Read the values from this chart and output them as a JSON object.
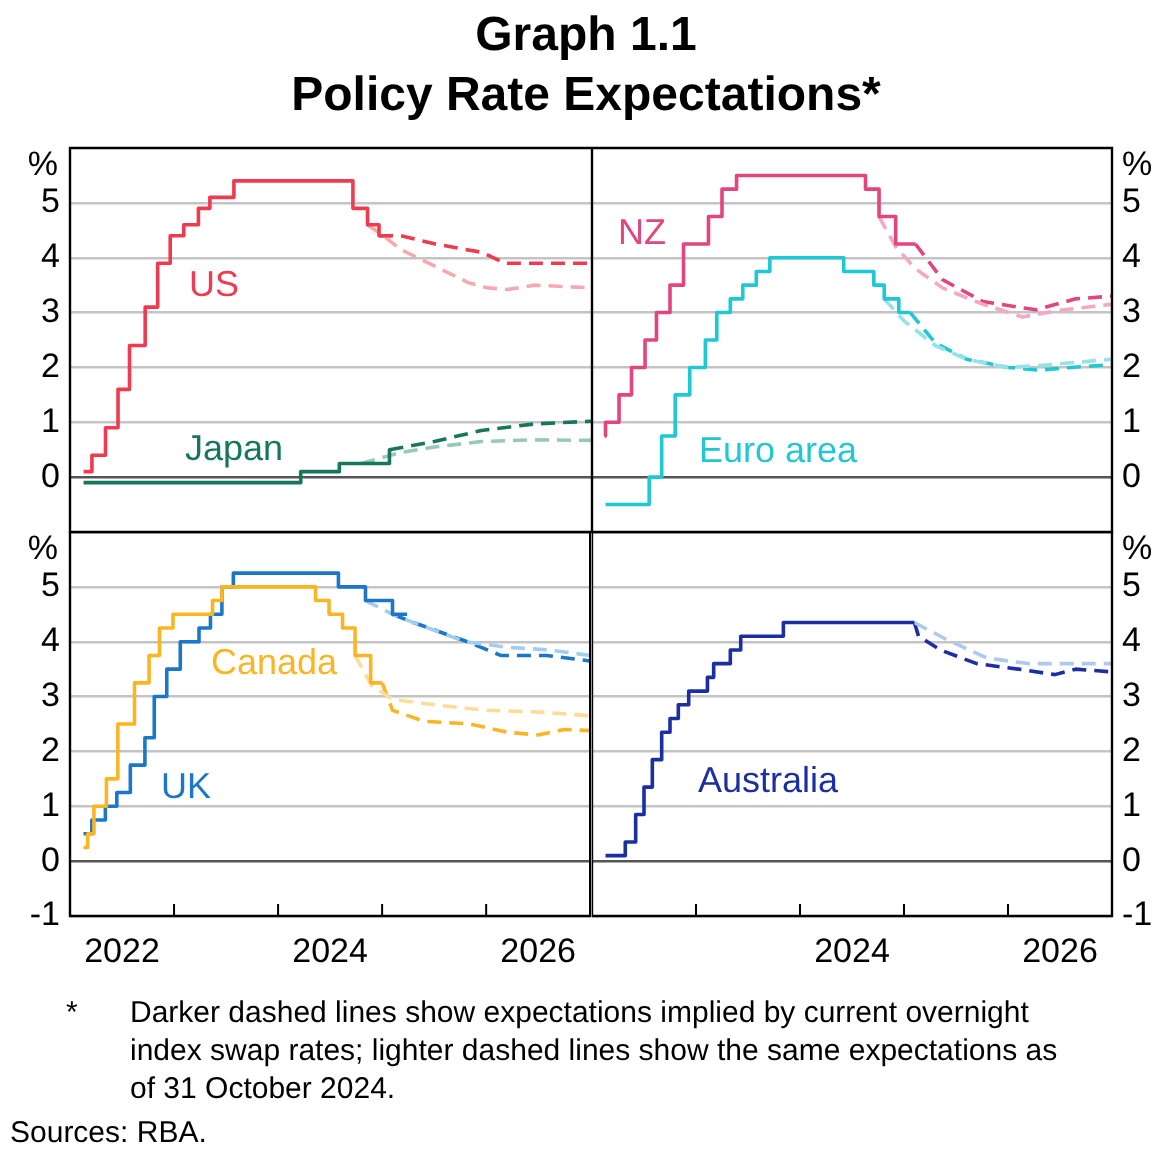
{
  "chart_data": [
    {
      "type": "line",
      "title": "Graph 1.1",
      "subtitle": "Policy Rate Expectations*",
      "annotations": [
        "*",
        "Darker dashed lines show expectations implied by current overnight index swap rates; lighter dashed lines show the same expectations as of 31 October 2024.",
        "Sources: RBA."
      ],
      "ylabel": "%",
      "xlim": [
        2022,
        2027
      ],
      "ylim": [
        -1,
        6
      ],
      "yticks": [
        0,
        1,
        2,
        3,
        4,
        5
      ],
      "grid": "y",
      "tick_labels": "y",
      "marker": "none",
      "series": [
        {
          "name": "US",
          "type": "step",
          "line_style": "solid",
          "color": "#ef3b4f",
          "x": [
            2022.13,
            2022.21,
            2022.34,
            2022.46,
            2022.57,
            2022.72,
            2022.84,
            2022.96,
            2023.09,
            2023.23,
            2023.34,
            2023.57,
            2024.71,
            2024.85,
            2024.96,
            2025.08
          ],
          "values": [
            0.1,
            0.4,
            0.9,
            1.6,
            2.4,
            3.1,
            3.9,
            4.4,
            4.6,
            4.9,
            5.1,
            5.4,
            4.9,
            4.6,
            4.4,
            4.4
          ]
        },
        {
          "type": "line",
          "line_style": "dashed",
          "color": "#f8a9b0",
          "x": [
            2024.85,
            2025.0,
            2025.17,
            2025.49,
            2025.81,
            2026.0,
            2026.19,
            2026.45,
            2027.0
          ],
          "values": [
            4.6,
            4.4,
            4.15,
            3.85,
            3.55,
            3.45,
            3.42,
            3.5,
            3.45
          ]
        },
        {
          "type": "line",
          "line_style": "dashed",
          "color": "#ef3b4f",
          "x": [
            2024.96,
            2025.17,
            2025.5,
            2025.94,
            2026.17,
            2027.0
          ],
          "values": [
            4.4,
            4.4,
            4.25,
            4.1,
            3.9,
            3.9
          ]
        },
        {
          "name": "Japan",
          "type": "step",
          "line_style": "solid",
          "color": "#17775c",
          "x": [
            2022.13,
            2024.21,
            2024.58,
            2025.06,
            2025.08
          ],
          "values": [
            -0.1,
            0.1,
            0.25,
            0.5,
            0.5
          ]
        },
        {
          "type": "line",
          "line_style": "dashed",
          "color": "#96c9b8",
          "x": [
            2024.79,
            2025.17,
            2025.49,
            2025.94,
            2026.45,
            2027.0
          ],
          "values": [
            0.25,
            0.45,
            0.55,
            0.65,
            0.68,
            0.67
          ]
        },
        {
          "type": "line",
          "line_style": "dashed",
          "color": "#17775c",
          "x": [
            2025.06,
            2025.49,
            2025.94,
            2026.45,
            2027.0
          ],
          "values": [
            0.5,
            0.65,
            0.85,
            0.97,
            1.02
          ]
        }
      ]
    },
    {
      "type": "line",
      "ylabel": "%",
      "xlim": [
        2022,
        2027
      ],
      "ylim": [
        -1,
        6
      ],
      "yticks": [
        0,
        1,
        2,
        3,
        4,
        5
      ],
      "grid": "y",
      "tick_labels": "y",
      "marker": "none",
      "series": [
        {
          "name": "NZ",
          "type": "step",
          "line_style": "solid",
          "color": "#e3457f",
          "x": [
            2022.12,
            2022.13,
            2022.26,
            2022.38,
            2022.51,
            2022.62,
            2022.75,
            2022.88,
            2023.12,
            2023.25,
            2023.39,
            2024.63,
            2024.76,
            2024.92,
            2025.11
          ],
          "values": [
            0.75,
            1.0,
            1.5,
            2.0,
            2.5,
            3.0,
            3.5,
            4.25,
            4.75,
            5.25,
            5.5,
            5.25,
            4.75,
            4.25,
            4.25
          ]
        },
        {
          "type": "line",
          "line_style": "dashed",
          "color": "#f3a9c3",
          "x": [
            2024.76,
            2024.92,
            2025.11,
            2025.37,
            2025.76,
            2026.14,
            2026.53,
            2027.0
          ],
          "values": [
            4.75,
            4.2,
            3.8,
            3.45,
            3.15,
            2.92,
            3.05,
            3.15
          ]
        },
        {
          "type": "line",
          "line_style": "dashed",
          "color": "#e3457f",
          "x": [
            2025.11,
            2025.37,
            2025.76,
            2026.27,
            2026.65,
            2027.0
          ],
          "values": [
            4.25,
            3.6,
            3.2,
            3.05,
            3.25,
            3.3
          ]
        },
        {
          "name": "Euro area",
          "type": "step",
          "line_style": "solid",
          "color": "#1fc8d2",
          "x": [
            2022.13,
            2022.55,
            2022.67,
            2022.8,
            2022.94,
            2023.09,
            2023.2,
            2023.33,
            2023.45,
            2023.58,
            2023.71,
            2024.42,
            2024.71,
            2024.81,
            2024.95,
            2025.06
          ],
          "values": [
            -0.5,
            0,
            0.75,
            1.5,
            2.0,
            2.5,
            3.0,
            3.25,
            3.5,
            3.75,
            4.0,
            3.75,
            3.5,
            3.25,
            3.0,
            3.0
          ]
        },
        {
          "type": "line",
          "line_style": "dashed",
          "color": "#93e3e8",
          "x": [
            2024.81,
            2025.0,
            2025.3,
            2025.6,
            2026.0,
            2026.4,
            2027.0
          ],
          "values": [
            3.25,
            2.85,
            2.4,
            2.15,
            2.0,
            2.05,
            2.15
          ]
        },
        {
          "type": "line",
          "line_style": "dashed",
          "color": "#1fc8d2",
          "x": [
            2025.06,
            2025.3,
            2025.6,
            2026.0,
            2026.3,
            2026.6,
            2027.0
          ],
          "values": [
            3.0,
            2.45,
            2.15,
            2.0,
            1.95,
            2.0,
            2.05
          ]
        }
      ]
    },
    {
      "type": "line",
      "ylabel": "%",
      "xlim": [
        2022,
        2027
      ],
      "ylim": [
        -1,
        6
      ],
      "yticks": [
        -1,
        0,
        1,
        2,
        3,
        4,
        5
      ],
      "grid": "y",
      "marker": "none",
      "xticks": [
        {
          "value": 2022.5,
          "label": "2022"
        },
        {
          "value": 2023,
          "label": null
        },
        {
          "value": 2024,
          "label": null
        },
        {
          "value": 2024.5,
          "label": "2024"
        },
        {
          "value": 2025,
          "label": null
        },
        {
          "value": 2026,
          "label": null
        },
        {
          "value": 2026.5,
          "label": "2026"
        }
      ],
      "series": [
        {
          "name": "Canada",
          "type": "step",
          "line_style": "solid",
          "color": "#fbb522",
          "x": [
            2022.13,
            2022.17,
            2022.23,
            2022.35,
            2022.46,
            2022.62,
            2022.76,
            2022.86,
            2022.99,
            2023.37,
            2023.46,
            2024.36,
            2024.49,
            2024.62,
            2024.74,
            2024.89,
            2025.0
          ],
          "values": [
            0.25,
            0.5,
            1.0,
            1.5,
            2.5,
            3.25,
            3.75,
            4.25,
            4.5,
            4.75,
            5.0,
            4.75,
            4.5,
            4.25,
            3.75,
            3.25,
            3.25
          ]
        },
        {
          "type": "line",
          "line_style": "dashed",
          "color": "#fcdc97",
          "x": [
            2024.74,
            2024.9,
            2025.1,
            2025.5,
            2026.0,
            2026.5,
            2027.0
          ],
          "values": [
            3.75,
            3.2,
            2.95,
            2.85,
            2.75,
            2.72,
            2.65
          ]
        },
        {
          "type": "line",
          "line_style": "dashed",
          "color": "#fbb522",
          "x": [
            2025.0,
            2025.1,
            2025.4,
            2025.85,
            2026.2,
            2026.5,
            2026.75,
            2027.0
          ],
          "values": [
            3.25,
            2.75,
            2.55,
            2.5,
            2.35,
            2.3,
            2.4,
            2.38
          ]
        },
        {
          "name": "UK",
          "type": "step",
          "line_style": "solid",
          "color": "#1b78c9",
          "x": [
            2022.13,
            2022.21,
            2022.34,
            2022.45,
            2022.58,
            2022.72,
            2022.81,
            2022.93,
            2023.06,
            2023.24,
            2023.35,
            2023.46,
            2023.57,
            2024.58,
            2024.84,
            2025.1,
            2025.24
          ],
          "values": [
            0.5,
            0.75,
            1.0,
            1.25,
            1.75,
            2.25,
            3.0,
            3.5,
            4.0,
            4.25,
            4.5,
            5.0,
            5.25,
            5.0,
            4.75,
            4.5,
            4.5
          ]
        },
        {
          "type": "line",
          "line_style": "dashed",
          "color": "#a3cdee",
          "x": [
            2024.84,
            2025.1,
            2025.3,
            2025.8,
            2026.2,
            2026.6,
            2027.0
          ],
          "values": [
            4.75,
            4.5,
            4.35,
            4.0,
            3.9,
            3.85,
            3.75
          ]
        },
        {
          "type": "line",
          "line_style": "dashed",
          "color": "#1b78c9",
          "x": [
            2025.1,
            2025.3,
            2025.82,
            2026.14,
            2026.58,
            2027.0
          ],
          "values": [
            4.5,
            4.35,
            4.0,
            3.75,
            3.75,
            3.65
          ]
        }
      ]
    },
    {
      "type": "line",
      "ylabel": "%",
      "xlim": [
        2022,
        2027
      ],
      "ylim": [
        -1,
        6
      ],
      "yticks": [
        -1,
        0,
        1,
        2,
        3,
        4,
        5
      ],
      "grid": "y",
      "marker": "none",
      "xticks": [
        {
          "value": 2023,
          "label": null
        },
        {
          "value": 2024,
          "label": null
        },
        {
          "value": 2024.5,
          "label": "2024"
        },
        {
          "value": 2025,
          "label": null
        },
        {
          "value": 2026,
          "label": null
        },
        {
          "value": 2026.5,
          "label": "2026"
        }
      ],
      "series": [
        {
          "name": "Australia",
          "type": "step",
          "line_style": "solid",
          "color": "#1b2fa3",
          "x": [
            2022.13,
            2022.32,
            2022.42,
            2022.5,
            2022.58,
            2022.67,
            2022.75,
            2022.83,
            2022.93,
            2023.11,
            2023.17,
            2023.33,
            2023.43,
            2023.84,
            2025.1
          ],
          "values": [
            0.1,
            0.35,
            0.85,
            1.35,
            1.85,
            2.35,
            2.6,
            2.85,
            3.1,
            3.35,
            3.6,
            3.85,
            4.1,
            4.35,
            4.35
          ]
        },
        {
          "type": "line",
          "line_style": "dashed",
          "color": "#aec9ef",
          "x": [
            2025.1,
            2025.4,
            2025.8,
            2026.2,
            2027.0
          ],
          "values": [
            4.35,
            4.05,
            3.7,
            3.6,
            3.6
          ]
        },
        {
          "type": "line",
          "line_style": "dashed",
          "color": "#1b2fa3",
          "x": [
            2025.1,
            2025.14,
            2025.35,
            2025.7,
            2026.1,
            2026.45,
            2026.65,
            2027.0
          ],
          "values": [
            4.35,
            4.1,
            3.85,
            3.6,
            3.5,
            3.4,
            3.5,
            3.45
          ]
        }
      ]
    }
  ]
}
